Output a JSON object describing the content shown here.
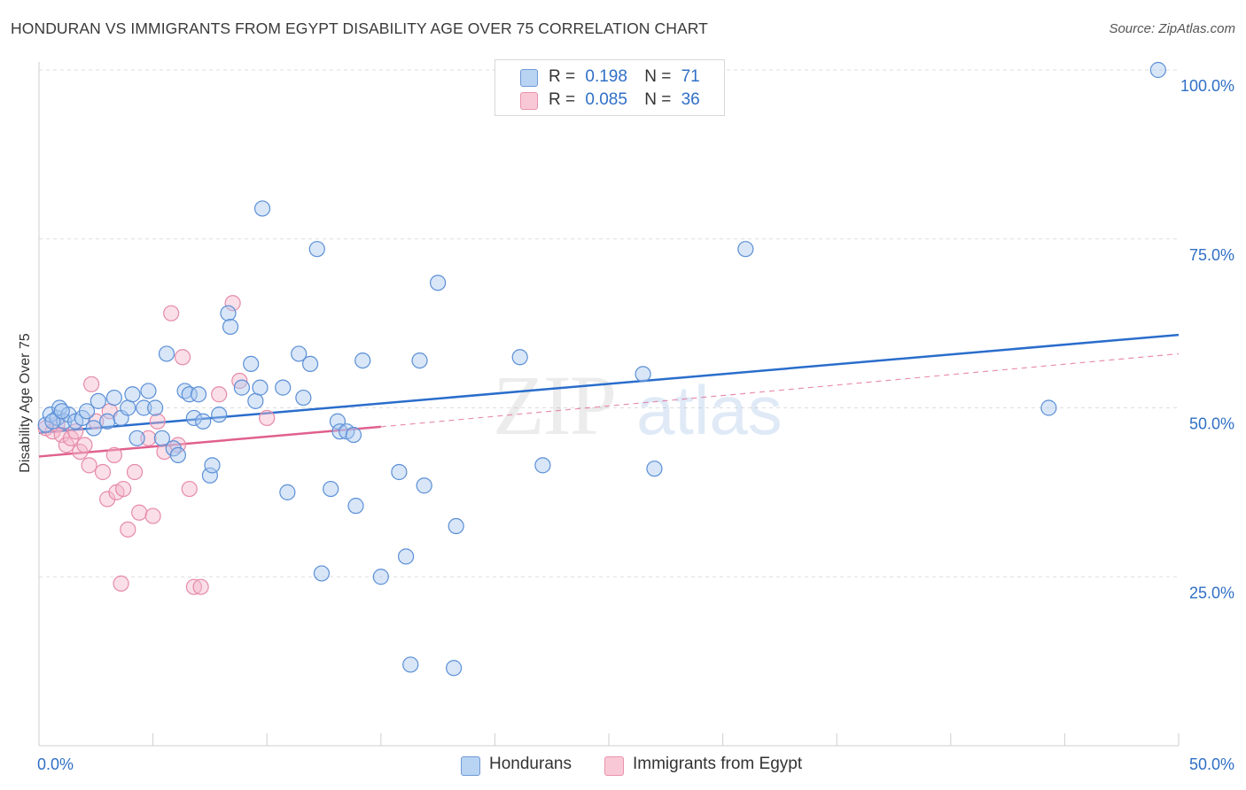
{
  "header": {
    "title": "HONDURAN VS IMMIGRANTS FROM EGYPT DISABILITY AGE OVER 75 CORRELATION CHART",
    "source": "Source: ZipAtlas.com"
  },
  "legend": {
    "r_label": "R =",
    "n_label": "N =",
    "rows": [
      {
        "r": "0.198",
        "n": "71"
      },
      {
        "r": "0.085",
        "n": "36"
      }
    ]
  },
  "colors": {
    "blue_fill": "#a8c8f0",
    "blue_stroke": "#5b8fd6",
    "blue_line": "#2a6dcc",
    "pink_fill": "#f5b8cb",
    "pink_stroke": "#e68aa8",
    "pink_line": "#e0608e",
    "tick_text": "#2f6fc6",
    "grid": "#dddddd"
  },
  "watermark": {
    "zip": "ZIP",
    "atlas": "atlas"
  },
  "chart_data": {
    "type": "scatter",
    "title": "HONDURAN VS IMMIGRANTS FROM EGYPT DISABILITY AGE OVER 75 CORRELATION CHART",
    "xlabel": "",
    "ylabel": "Disability Age Over 75",
    "xlim": [
      0,
      50
    ],
    "ylim": [
      0,
      100
    ],
    "x_tick_labels": [
      "0.0%",
      "50.0%"
    ],
    "y_ticks": [
      25,
      50,
      75,
      100
    ],
    "y_tick_labels": [
      "25.0%",
      "50.0%",
      "75.0%",
      "100.0%"
    ],
    "series": [
      {
        "name": "Hondurans",
        "r": 0.198,
        "n": 71,
        "trend": {
          "x": [
            0,
            50
          ],
          "y": [
            46.3,
            60.8
          ],
          "style": "solid"
        },
        "points": [
          [
            0.3,
            47.5
          ],
          [
            0.5,
            49.0
          ],
          [
            0.8,
            48.5
          ],
          [
            0.9,
            50.0
          ],
          [
            1.1,
            48.0
          ],
          [
            1.3,
            49.0
          ],
          [
            1.6,
            48.0
          ],
          [
            1.9,
            48.5
          ],
          [
            2.1,
            49.5
          ],
          [
            2.4,
            47.0
          ],
          [
            2.6,
            51.0
          ],
          [
            3.0,
            48.0
          ],
          [
            3.3,
            51.5
          ],
          [
            3.6,
            48.5
          ],
          [
            3.9,
            50.0
          ],
          [
            4.1,
            52.0
          ],
          [
            4.3,
            45.5
          ],
          [
            4.6,
            50.0
          ],
          [
            4.8,
            52.5
          ],
          [
            5.1,
            50.0
          ],
          [
            5.4,
            45.5
          ],
          [
            5.6,
            58.0
          ],
          [
            5.9,
            44.0
          ],
          [
            6.1,
            43.0
          ],
          [
            6.4,
            52.5
          ],
          [
            6.6,
            52.0
          ],
          [
            6.8,
            48.5
          ],
          [
            7.0,
            52.0
          ],
          [
            7.2,
            48.0
          ],
          [
            7.5,
            40.0
          ],
          [
            7.6,
            41.5
          ],
          [
            7.9,
            49.0
          ],
          [
            8.3,
            64.0
          ],
          [
            8.4,
            62.0
          ],
          [
            8.9,
            53.0
          ],
          [
            9.3,
            56.5
          ],
          [
            9.5,
            51.0
          ],
          [
            9.7,
            53.0
          ],
          [
            9.8,
            79.5
          ],
          [
            10.7,
            53.0
          ],
          [
            10.9,
            37.5
          ],
          [
            11.4,
            58.0
          ],
          [
            11.6,
            51.5
          ],
          [
            11.9,
            56.5
          ],
          [
            12.2,
            73.5
          ],
          [
            12.4,
            25.5
          ],
          [
            12.8,
            38.0
          ],
          [
            13.1,
            48.0
          ],
          [
            13.2,
            46.5
          ],
          [
            13.5,
            46.5
          ],
          [
            13.8,
            46.0
          ],
          [
            13.9,
            35.5
          ],
          [
            14.2,
            57.0
          ],
          [
            15.0,
            25.0
          ],
          [
            15.8,
            40.5
          ],
          [
            16.1,
            28.0
          ],
          [
            16.3,
            12.0
          ],
          [
            16.7,
            57.0
          ],
          [
            16.9,
            38.5
          ],
          [
            17.5,
            68.5
          ],
          [
            18.2,
            11.5
          ],
          [
            18.3,
            32.5
          ],
          [
            21.1,
            57.5
          ],
          [
            22.1,
            41.5
          ],
          [
            26.5,
            55.0
          ],
          [
            27.0,
            41.0
          ],
          [
            31.0,
            73.5
          ],
          [
            44.3,
            50.0
          ],
          [
            49.1,
            100.0
          ],
          [
            0.6,
            48.0
          ],
          [
            1.0,
            49.5
          ]
        ]
      },
      {
        "name": "Immigrants from Egypt",
        "r": 0.085,
        "n": 36,
        "trend": {
          "x": [
            0,
            15
          ],
          "y": [
            42.8,
            47.2
          ],
          "style": "solid",
          "dashed_extension": {
            "x": [
              15,
              50
            ],
            "y": [
              47.2,
              58.0
            ]
          }
        },
        "points": [
          [
            0.3,
            47.0
          ],
          [
            0.6,
            46.5
          ],
          [
            0.8,
            47.5
          ],
          [
            1.0,
            46.0
          ],
          [
            1.2,
            44.5
          ],
          [
            1.4,
            45.5
          ],
          [
            1.6,
            46.5
          ],
          [
            1.8,
            43.5
          ],
          [
            2.0,
            44.5
          ],
          [
            2.2,
            41.5
          ],
          [
            2.3,
            53.5
          ],
          [
            2.5,
            48.0
          ],
          [
            2.8,
            40.5
          ],
          [
            3.0,
            36.5
          ],
          [
            3.1,
            49.5
          ],
          [
            3.3,
            43.0
          ],
          [
            3.4,
            37.5
          ],
          [
            3.6,
            24.0
          ],
          [
            3.9,
            32.0
          ],
          [
            4.2,
            40.5
          ],
          [
            4.4,
            34.5
          ],
          [
            4.8,
            45.5
          ],
          [
            5.0,
            34.0
          ],
          [
            5.2,
            48.0
          ],
          [
            5.5,
            43.5
          ],
          [
            5.8,
            64.0
          ],
          [
            6.1,
            44.5
          ],
          [
            6.3,
            57.5
          ],
          [
            6.6,
            38.0
          ],
          [
            6.8,
            23.5
          ],
          [
            7.1,
            23.5
          ],
          [
            7.9,
            52.0
          ],
          [
            8.5,
            65.5
          ],
          [
            8.8,
            54.0
          ],
          [
            10.0,
            48.5
          ],
          [
            3.7,
            38.0
          ]
        ]
      }
    ]
  }
}
